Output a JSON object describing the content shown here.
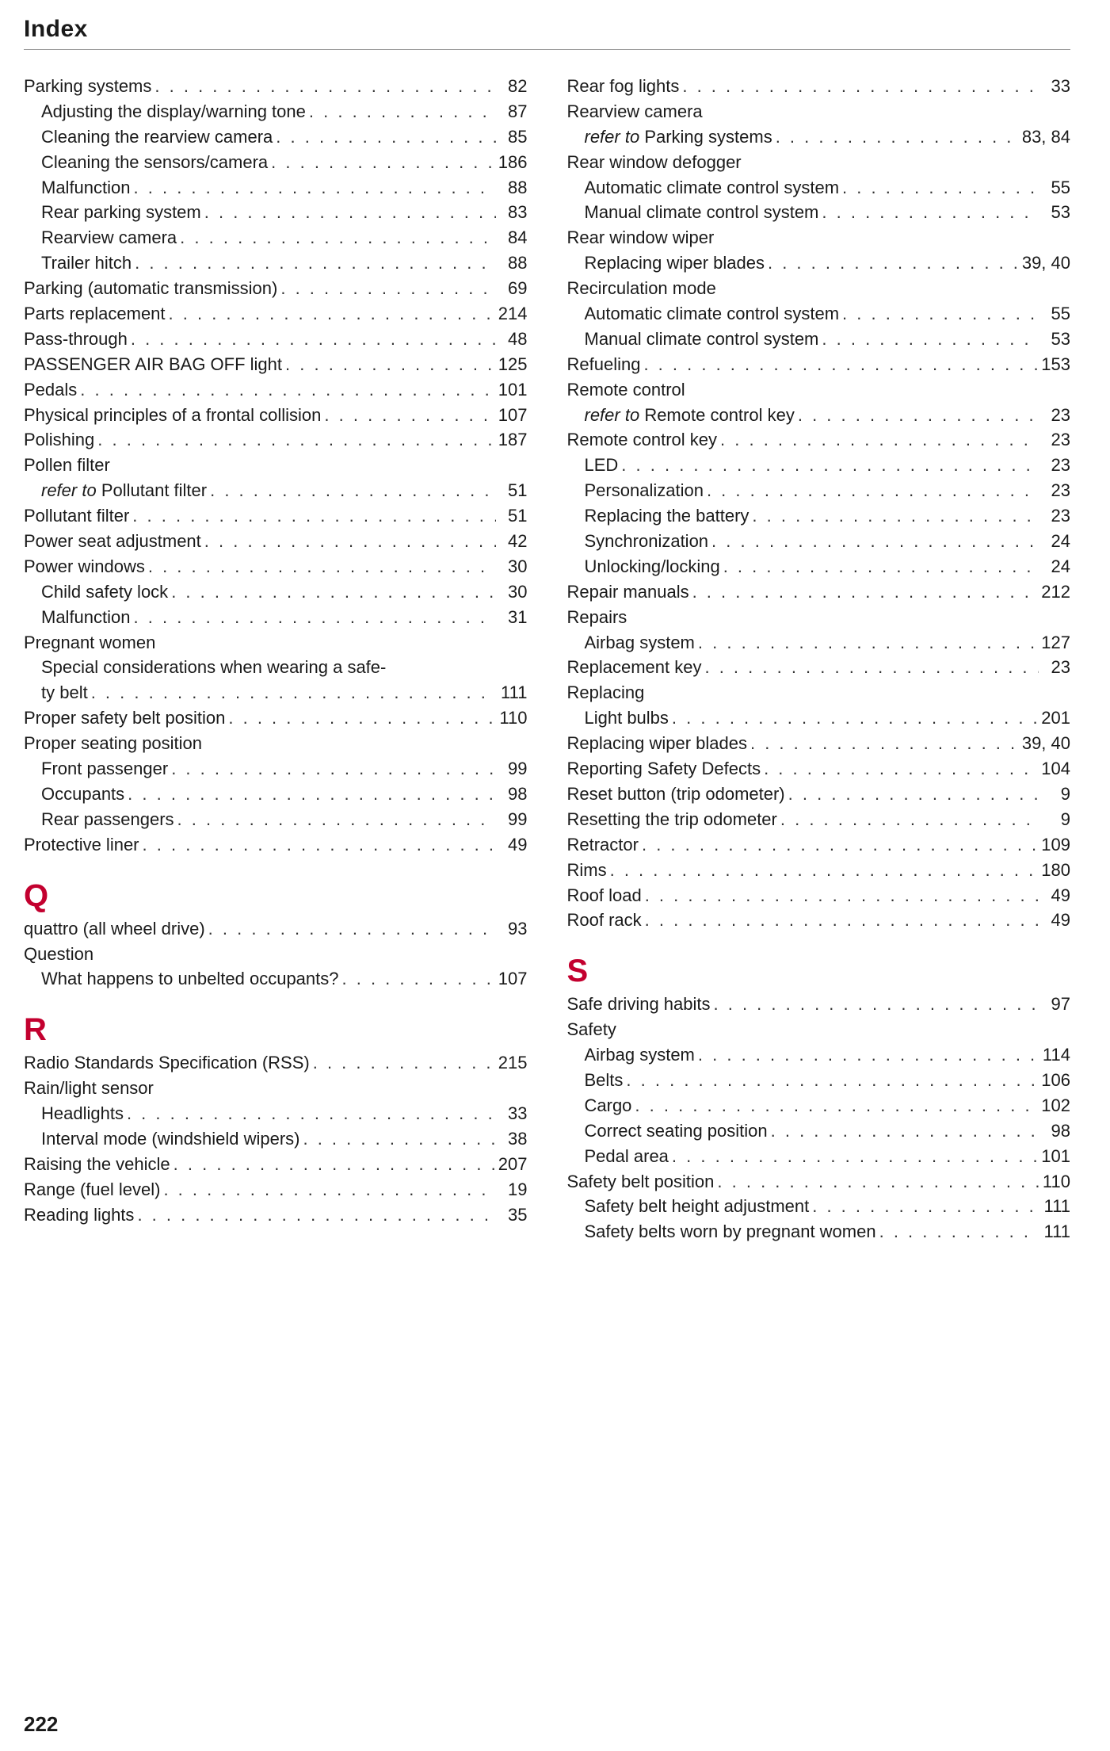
{
  "header": "Index",
  "pageNumber": "222",
  "accentColor": "#c3002f",
  "left": [
    {
      "t": "e",
      "label": "Parking systems",
      "page": "82"
    },
    {
      "t": "s",
      "label": "Adjusting the display/warning tone",
      "page": "87"
    },
    {
      "t": "s",
      "label": "Cleaning the rearview camera",
      "page": "85"
    },
    {
      "t": "s",
      "label": "Cleaning the sensors/camera",
      "page": "186"
    },
    {
      "t": "s",
      "label": "Malfunction",
      "page": "88"
    },
    {
      "t": "s",
      "label": "Rear parking system",
      "page": "83"
    },
    {
      "t": "s",
      "label": "Rearview camera",
      "page": "84"
    },
    {
      "t": "s",
      "label": "Trailer hitch",
      "page": "88"
    },
    {
      "t": "e",
      "label": "Parking (automatic transmission)",
      "page": "69"
    },
    {
      "t": "e",
      "label": "Parts replacement",
      "page": "214"
    },
    {
      "t": "e",
      "label": "Pass-through",
      "page": "48"
    },
    {
      "t": "e",
      "label": "PASSENGER AIR BAG OFF light",
      "page": "125"
    },
    {
      "t": "e",
      "label": "Pedals",
      "page": "101"
    },
    {
      "t": "e",
      "label": "Physical principles of a frontal collision",
      "page": "107"
    },
    {
      "t": "e",
      "label": "Polishing",
      "page": "187"
    },
    {
      "t": "e",
      "label": "Pollen filter",
      "noPage": true
    },
    {
      "t": "s",
      "ref": "refer to ",
      "label": "Pollutant filter",
      "page": "51"
    },
    {
      "t": "e",
      "label": "Pollutant filter",
      "page": "51"
    },
    {
      "t": "e",
      "label": "Power seat adjustment",
      "page": "42"
    },
    {
      "t": "e",
      "label": "Power windows",
      "page": "30"
    },
    {
      "t": "s",
      "label": "Child safety lock",
      "page": "30"
    },
    {
      "t": "s",
      "label": "Malfunction",
      "page": "31"
    },
    {
      "t": "e",
      "label": "Pregnant women",
      "noPage": true
    },
    {
      "t": "s",
      "label": "Special considerations when wearing a safe-",
      "noPage": true
    },
    {
      "t": "s",
      "label": "ty belt",
      "page": "111"
    },
    {
      "t": "e",
      "label": "Proper safety belt position",
      "page": "110"
    },
    {
      "t": "e",
      "label": "Proper seating position",
      "noPage": true
    },
    {
      "t": "s",
      "label": "Front passenger",
      "page": "99"
    },
    {
      "t": "s",
      "label": "Occupants",
      "page": "98"
    },
    {
      "t": "s",
      "label": "Rear passengers",
      "page": "99"
    },
    {
      "t": "e",
      "label": "Protective liner",
      "page": "49"
    },
    {
      "t": "L",
      "letter": "Q"
    },
    {
      "t": "e",
      "label": "quattro (all wheel drive)",
      "page": "93"
    },
    {
      "t": "e",
      "label": "Question",
      "noPage": true
    },
    {
      "t": "s",
      "label": "What happens to unbelted occupants?",
      "page": "107"
    },
    {
      "t": "L",
      "letter": "R"
    },
    {
      "t": "e",
      "label": "Radio Standards Specification (RSS)",
      "page": "215"
    },
    {
      "t": "e",
      "label": "Rain/light sensor",
      "noPage": true
    },
    {
      "t": "s",
      "label": "Headlights",
      "page": "33"
    },
    {
      "t": "s",
      "label": "Interval mode (windshield wipers)",
      "page": "38"
    },
    {
      "t": "e",
      "label": "Raising the vehicle",
      "page": "207"
    },
    {
      "t": "e",
      "label": "Range (fuel level)",
      "page": "19"
    },
    {
      "t": "e",
      "label": "Reading lights",
      "page": "35"
    }
  ],
  "right": [
    {
      "t": "e",
      "label": "Rear fog lights",
      "page": "33"
    },
    {
      "t": "e",
      "label": "Rearview camera",
      "noPage": true
    },
    {
      "t": "s",
      "ref": "refer to ",
      "label": "Parking systems",
      "page": "83, 84"
    },
    {
      "t": "e",
      "label": "Rear window defogger",
      "noPage": true
    },
    {
      "t": "s",
      "label": "Automatic climate control system",
      "page": "55"
    },
    {
      "t": "s",
      "label": "Manual climate control system",
      "page": "53"
    },
    {
      "t": "e",
      "label": "Rear window wiper",
      "noPage": true
    },
    {
      "t": "s",
      "label": "Replacing wiper blades",
      "page": "39, 40"
    },
    {
      "t": "e",
      "label": "Recirculation mode",
      "noPage": true
    },
    {
      "t": "s",
      "label": "Automatic climate control system",
      "page": "55"
    },
    {
      "t": "s",
      "label": "Manual climate control system",
      "page": "53"
    },
    {
      "t": "e",
      "label": "Refueling",
      "page": "153"
    },
    {
      "t": "e",
      "label": "Remote control",
      "noPage": true
    },
    {
      "t": "s",
      "ref": "refer to ",
      "label": "Remote control key",
      "page": "23"
    },
    {
      "t": "e",
      "label": "Remote control key",
      "page": "23"
    },
    {
      "t": "s",
      "label": "LED",
      "page": "23"
    },
    {
      "t": "s",
      "label": "Personalization",
      "page": "23"
    },
    {
      "t": "s",
      "label": "Replacing the battery",
      "page": "23"
    },
    {
      "t": "s",
      "label": "Synchronization",
      "page": "24"
    },
    {
      "t": "s",
      "label": "Unlocking/locking",
      "page": "24"
    },
    {
      "t": "e",
      "label": "Repair manuals",
      "page": "212"
    },
    {
      "t": "e",
      "label": "Repairs",
      "noPage": true
    },
    {
      "t": "s",
      "label": "Airbag system",
      "page": "127"
    },
    {
      "t": "e",
      "label": "Replacement key",
      "page": "23"
    },
    {
      "t": "e",
      "label": "Replacing",
      "noPage": true
    },
    {
      "t": "s",
      "label": "Light bulbs",
      "page": "201"
    },
    {
      "t": "e",
      "label": "Replacing wiper blades",
      "page": "39, 40"
    },
    {
      "t": "e",
      "label": "Reporting Safety Defects",
      "page": "104"
    },
    {
      "t": "e",
      "label": "Reset button (trip odometer)",
      "page": "9"
    },
    {
      "t": "e",
      "label": "Resetting the trip odometer",
      "page": "9"
    },
    {
      "t": "e",
      "label": "Retractor",
      "page": "109"
    },
    {
      "t": "e",
      "label": "Rims",
      "page": "180"
    },
    {
      "t": "e",
      "label": "Roof load",
      "page": "49"
    },
    {
      "t": "e",
      "label": "Roof rack",
      "page": "49"
    },
    {
      "t": "L",
      "letter": "S"
    },
    {
      "t": "e",
      "label": "Safe driving habits",
      "page": "97"
    },
    {
      "t": "e",
      "label": "Safety",
      "noPage": true
    },
    {
      "t": "s",
      "label": "Airbag system",
      "page": "114"
    },
    {
      "t": "s",
      "label": "Belts",
      "page": "106"
    },
    {
      "t": "s",
      "label": "Cargo",
      "page": "102"
    },
    {
      "t": "s",
      "label": "Correct seating position",
      "page": "98"
    },
    {
      "t": "s",
      "label": "Pedal area",
      "page": "101"
    },
    {
      "t": "e",
      "label": "Safety belt position",
      "page": "110"
    },
    {
      "t": "s",
      "label": "Safety belt height adjustment",
      "page": "111"
    },
    {
      "t": "s",
      "label": "Safety belts worn by pregnant women",
      "page": "111"
    }
  ]
}
